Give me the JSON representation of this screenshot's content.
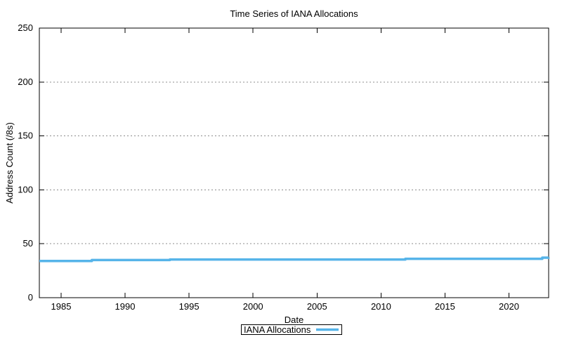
{
  "chart_data": {
    "type": "line",
    "title": "Time Series of IANA Allocations",
    "xlabel": "Date",
    "ylabel": "Address Count (/8s)",
    "xlim": [
      1983.3,
      2023.1
    ],
    "ylim": [
      0,
      250
    ],
    "xticks": [
      1985,
      1990,
      1995,
      2000,
      2005,
      2010,
      2015,
      2020
    ],
    "yticks": [
      0,
      50,
      100,
      150,
      200,
      250
    ],
    "grid": "horizontal-dotted-only",
    "legend_position": "below-plot-center",
    "series": [
      {
        "name": "IANA Allocations",
        "color": "#56B4E9",
        "line_width": 3.5,
        "style": "step-after",
        "points": [
          [
            1983.3,
            34.0
          ],
          [
            1987.4,
            34.9
          ],
          [
            1993.5,
            35.4
          ],
          [
            2011.9,
            36.1
          ],
          [
            2022.6,
            37.1
          ],
          [
            2023.1,
            37.2
          ]
        ]
      }
    ]
  },
  "colors": {
    "background": "#ffffff",
    "axis": "#000000",
    "grid": "#8c8c8c",
    "text": "#000000",
    "series_blue": "#56B4E9"
  }
}
